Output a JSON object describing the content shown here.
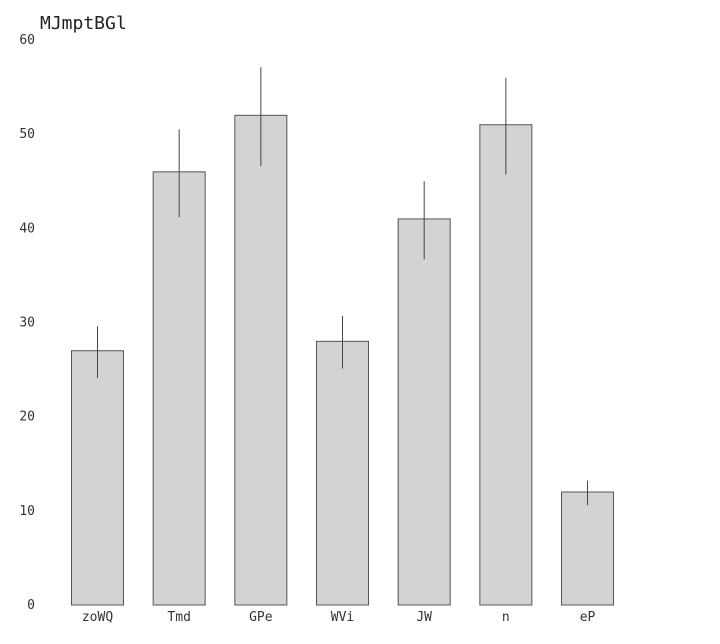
{
  "chart_data": {
    "type": "bar",
    "title": "MJmptBGl",
    "xlabel": "",
    "ylabel": "",
    "categories": [
      "zoWQ",
      "Tmd",
      "GPe",
      "WVi",
      "JW",
      "n",
      "eP"
    ],
    "values": [
      27,
      46,
      52,
      28,
      41,
      51,
      12
    ],
    "error_low": [
      24.1,
      41.2,
      46.6,
      25.1,
      36.7,
      45.7,
      10.6
    ],
    "error_high": [
      29.6,
      50.5,
      57.1,
      30.7,
      45.0,
      56.0,
      13.2
    ],
    "ylim": [
      0,
      60
    ],
    "yticks": [
      0,
      10,
      20,
      30,
      40,
      50,
      60
    ],
    "grid": false,
    "bar_color": "#d3d3d3",
    "edge_color": "#555555",
    "error_color": "#444444"
  }
}
